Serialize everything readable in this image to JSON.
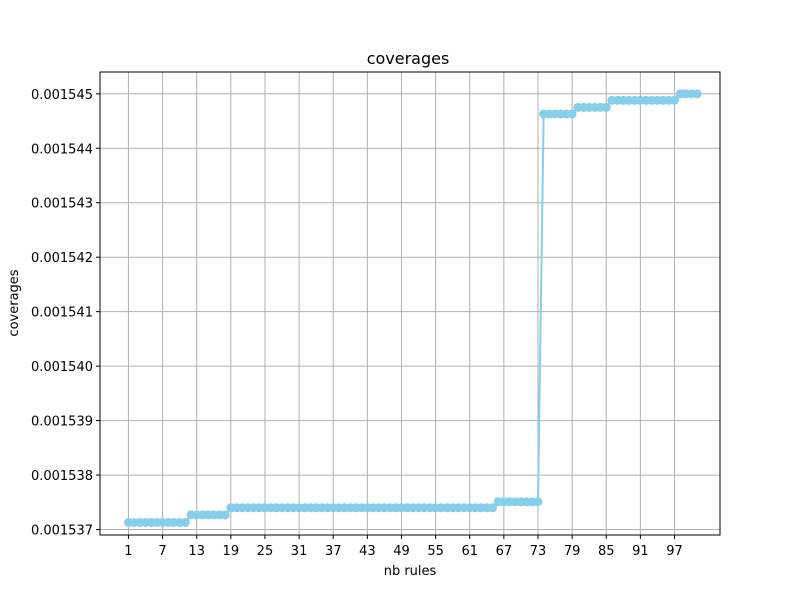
{
  "chart_data": {
    "type": "line",
    "title": "coverages",
    "xlabel": "nb rules",
    "ylabel": "coverages",
    "xlim": [
      -4,
      105
    ],
    "ylim": [
      0.0015369,
      0.0015454
    ],
    "xticks": [
      1,
      7,
      13,
      19,
      25,
      31,
      37,
      43,
      49,
      55,
      61,
      67,
      73,
      79,
      85,
      91,
      97
    ],
    "xtick_labels": [
      "1",
      "7",
      "13",
      "19",
      "25",
      "31",
      "37",
      "43",
      "49",
      "55",
      "61",
      "67",
      "73",
      "79",
      "85",
      "91",
      "97"
    ],
    "yticks": [
      0.001537,
      0.001538,
      0.001539,
      0.00154,
      0.001541,
      0.001542,
      0.001543,
      0.001544,
      0.001545
    ],
    "ytick_labels": [
      "0.001537",
      "0.001538",
      "0.001539",
      "0.001540",
      "0.001541",
      "0.001542",
      "0.001543",
      "0.001544",
      "0.001545"
    ],
    "grid": true,
    "color": "#87ceeb",
    "series": [
      {
        "steps": [
          {
            "from": 1,
            "to": 11,
            "y": 0.00153713
          },
          {
            "from": 12,
            "to": 18,
            "y": 0.00153727
          },
          {
            "from": 19,
            "to": 65,
            "y": 0.0015374
          },
          {
            "from": 66,
            "to": 73,
            "y": 0.00153751
          },
          {
            "from": 74,
            "to": 79,
            "y": 0.00154463
          },
          {
            "from": 80,
            "to": 85,
            "y": 0.00154475
          },
          {
            "from": 86,
            "to": 97,
            "y": 0.00154488
          },
          {
            "from": 98,
            "to": 101,
            "y": 0.001545
          }
        ]
      }
    ]
  }
}
